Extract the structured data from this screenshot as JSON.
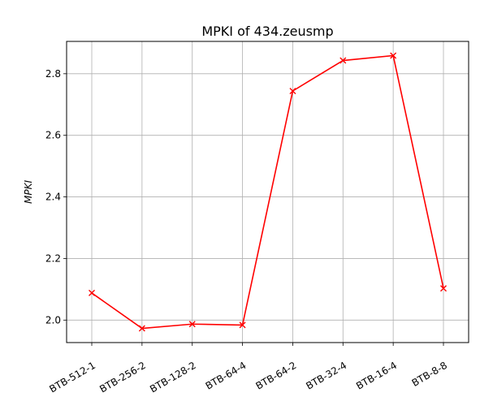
{
  "chart_data": {
    "type": "line",
    "title": "MPKI of 434.zeusmp",
    "xlabel": "",
    "ylabel": "MPKI",
    "categories": [
      "BTB-512-1",
      "BTB-256-2",
      "BTB-128-2",
      "BTB-64-4",
      "BTB-64-2",
      "BTB-32-4",
      "BTB-16-4",
      "BTB-8-8"
    ],
    "series": [
      {
        "values": [
          2.088,
          1.973,
          1.987,
          1.984,
          2.744,
          2.843,
          2.859,
          2.103
        ]
      }
    ],
    "ylim": [
      1.927,
      2.905
    ],
    "yticks": [
      "2.0",
      "2.2",
      "2.4",
      "2.6",
      "2.8"
    ],
    "ytick_values": [
      2.0,
      2.2,
      2.4,
      2.6,
      2.8
    ],
    "grid": true,
    "line_color": "#ff0000",
    "marker": "x"
  }
}
